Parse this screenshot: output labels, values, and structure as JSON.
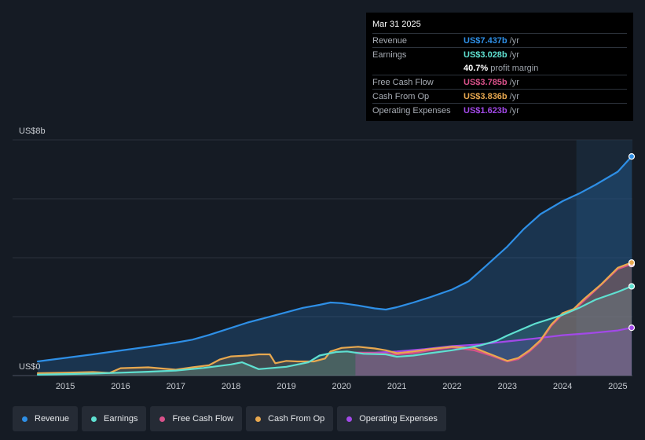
{
  "tooltip": {
    "date": "Mar 31 2025",
    "rows": [
      {
        "label": "Revenue",
        "value": "US$7.437b",
        "unit": "/yr",
        "color": "#2e8fe6"
      },
      {
        "label": "Earnings",
        "value": "US$3.028b",
        "unit": "/yr",
        "color": "#5fe0d1"
      },
      {
        "label": "Free Cash Flow",
        "value": "US$3.785b",
        "unit": "/yr",
        "color": "#d9518a"
      },
      {
        "label": "Cash From Op",
        "value": "US$3.836b",
        "unit": "/yr",
        "color": "#e8a84f"
      },
      {
        "label": "Operating Expenses",
        "value": "US$1.623b",
        "unit": "/yr",
        "color": "#a249e8"
      }
    ],
    "margin": {
      "value": "40.7%",
      "text": "profit margin"
    }
  },
  "legend": [
    {
      "label": "Revenue",
      "color": "#2e8fe6"
    },
    {
      "label": "Earnings",
      "color": "#5fe0d1"
    },
    {
      "label": "Free Cash Flow",
      "color": "#d9518a"
    },
    {
      "label": "Cash From Op",
      "color": "#e8a84f"
    },
    {
      "label": "Operating Expenses",
      "color": "#a249e8"
    }
  ],
  "chart_data": {
    "type": "line",
    "title": "",
    "y_top_label": "US$8b",
    "y_bottom_label": "US$0",
    "ylim": [
      0,
      8
    ],
    "xlim": [
      2014.5,
      2025.25
    ],
    "x_ticks": [
      "2015",
      "2016",
      "2017",
      "2018",
      "2019",
      "2020",
      "2021",
      "2022",
      "2023",
      "2024",
      "2025"
    ],
    "unit": "US$ billions",
    "series": [
      {
        "name": "Revenue",
        "color": "#2e8fe6",
        "points": [
          [
            2014.5,
            0.48
          ],
          [
            2015.0,
            0.6
          ],
          [
            2015.5,
            0.72
          ],
          [
            2016.0,
            0.85
          ],
          [
            2016.5,
            0.98
          ],
          [
            2017.0,
            1.12
          ],
          [
            2017.3,
            1.22
          ],
          [
            2017.6,
            1.38
          ],
          [
            2018.0,
            1.62
          ],
          [
            2018.3,
            1.8
          ],
          [
            2018.6,
            1.95
          ],
          [
            2019.0,
            2.15
          ],
          [
            2019.3,
            2.3
          ],
          [
            2019.6,
            2.4
          ],
          [
            2019.8,
            2.48
          ],
          [
            2020.0,
            2.46
          ],
          [
            2020.3,
            2.38
          ],
          [
            2020.6,
            2.28
          ],
          [
            2020.8,
            2.24
          ],
          [
            2021.0,
            2.32
          ],
          [
            2021.3,
            2.48
          ],
          [
            2021.6,
            2.66
          ],
          [
            2022.0,
            2.92
          ],
          [
            2022.3,
            3.2
          ],
          [
            2022.6,
            3.7
          ],
          [
            2023.0,
            4.38
          ],
          [
            2023.3,
            4.98
          ],
          [
            2023.6,
            5.48
          ],
          [
            2024.0,
            5.92
          ],
          [
            2024.3,
            6.18
          ],
          [
            2024.6,
            6.48
          ],
          [
            2025.0,
            6.92
          ],
          [
            2025.25,
            7.437
          ]
        ]
      },
      {
        "name": "Earnings",
        "color": "#5fe0d1",
        "points": [
          [
            2014.5,
            0.03
          ],
          [
            2015.0,
            0.05
          ],
          [
            2015.5,
            0.07
          ],
          [
            2016.0,
            0.1
          ],
          [
            2016.5,
            0.13
          ],
          [
            2017.0,
            0.17
          ],
          [
            2017.5,
            0.26
          ],
          [
            2018.0,
            0.38
          ],
          [
            2018.2,
            0.45
          ],
          [
            2018.5,
            0.22
          ],
          [
            2019.0,
            0.3
          ],
          [
            2019.4,
            0.45
          ],
          [
            2019.6,
            0.68
          ],
          [
            2019.9,
            0.8
          ],
          [
            2020.1,
            0.82
          ],
          [
            2020.4,
            0.74
          ],
          [
            2020.8,
            0.72
          ],
          [
            2021.0,
            0.64
          ],
          [
            2021.3,
            0.68
          ],
          [
            2021.6,
            0.76
          ],
          [
            2022.0,
            0.86
          ],
          [
            2022.5,
            1.02
          ],
          [
            2022.8,
            1.18
          ],
          [
            2023.0,
            1.36
          ],
          [
            2023.5,
            1.76
          ],
          [
            2024.0,
            2.06
          ],
          [
            2024.3,
            2.3
          ],
          [
            2024.6,
            2.58
          ],
          [
            2025.0,
            2.84
          ],
          [
            2025.25,
            3.028
          ]
        ]
      },
      {
        "name": "Free Cash Flow",
        "color": "#d9518a",
        "points": [
          [
            2020.25,
            0.78
          ],
          [
            2020.6,
            0.76
          ],
          [
            2021.0,
            0.72
          ],
          [
            2021.3,
            0.76
          ],
          [
            2021.6,
            0.86
          ],
          [
            2022.0,
            0.96
          ],
          [
            2022.4,
            0.86
          ],
          [
            2022.7,
            0.68
          ],
          [
            2023.0,
            0.48
          ],
          [
            2023.2,
            0.56
          ],
          [
            2023.4,
            0.82
          ],
          [
            2023.6,
            1.16
          ],
          [
            2023.8,
            1.7
          ],
          [
            2024.0,
            2.08
          ],
          [
            2024.2,
            2.22
          ],
          [
            2024.4,
            2.56
          ],
          [
            2024.7,
            3.08
          ],
          [
            2025.0,
            3.62
          ],
          [
            2025.25,
            3.785
          ]
        ]
      },
      {
        "name": "Cash From Op",
        "color": "#e8a84f",
        "points": [
          [
            2014.5,
            0.08
          ],
          [
            2015.0,
            0.1
          ],
          [
            2015.5,
            0.12
          ],
          [
            2015.8,
            0.09
          ],
          [
            2016.0,
            0.25
          ],
          [
            2016.5,
            0.28
          ],
          [
            2017.0,
            0.2
          ],
          [
            2017.3,
            0.28
          ],
          [
            2017.6,
            0.35
          ],
          [
            2017.8,
            0.55
          ],
          [
            2018.0,
            0.65
          ],
          [
            2018.3,
            0.68
          ],
          [
            2018.5,
            0.72
          ],
          [
            2018.7,
            0.72
          ],
          [
            2018.8,
            0.42
          ],
          [
            2019.0,
            0.5
          ],
          [
            2019.2,
            0.48
          ],
          [
            2019.5,
            0.48
          ],
          [
            2019.7,
            0.58
          ],
          [
            2019.8,
            0.82
          ],
          [
            2020.0,
            0.94
          ],
          [
            2020.3,
            0.98
          ],
          [
            2020.6,
            0.92
          ],
          [
            2020.8,
            0.86
          ],
          [
            2021.0,
            0.76
          ],
          [
            2021.3,
            0.82
          ],
          [
            2021.6,
            0.9
          ],
          [
            2021.8,
            0.94
          ],
          [
            2022.0,
            0.98
          ],
          [
            2022.4,
            0.94
          ],
          [
            2022.7,
            0.72
          ],
          [
            2023.0,
            0.5
          ],
          [
            2023.2,
            0.6
          ],
          [
            2023.4,
            0.86
          ],
          [
            2023.6,
            1.2
          ],
          [
            2023.8,
            1.74
          ],
          [
            2024.0,
            2.12
          ],
          [
            2024.2,
            2.26
          ],
          [
            2024.4,
            2.62
          ],
          [
            2024.7,
            3.1
          ],
          [
            2025.0,
            3.66
          ],
          [
            2025.25,
            3.836
          ]
        ]
      },
      {
        "name": "Operating Expenses",
        "color": "#a249e8",
        "points": [
          [
            2020.25,
            0.78
          ],
          [
            2020.6,
            0.78
          ],
          [
            2021.0,
            0.82
          ],
          [
            2021.5,
            0.9
          ],
          [
            2022.0,
            1.0
          ],
          [
            2022.5,
            1.06
          ],
          [
            2023.0,
            1.16
          ],
          [
            2023.5,
            1.26
          ],
          [
            2024.0,
            1.37
          ],
          [
            2024.5,
            1.44
          ],
          [
            2025.0,
            1.53
          ],
          [
            2025.25,
            1.623
          ]
        ]
      }
    ]
  }
}
